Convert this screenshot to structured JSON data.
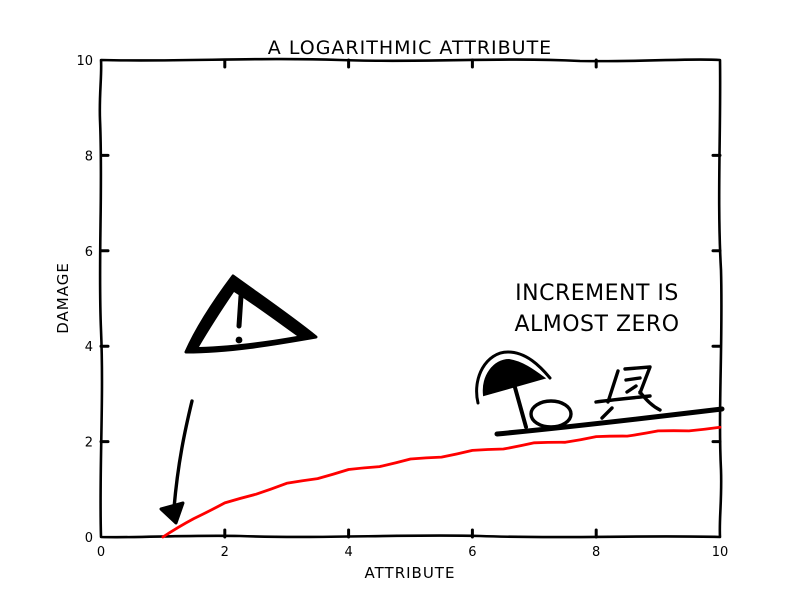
{
  "chart_data": {
    "type": "line",
    "title": "A LOGARITHMIC ATTRIBUTE",
    "xlabel": "ATTRIBUTE",
    "ylabel": "DAMAGE",
    "xlim": [
      0,
      10
    ],
    "ylim": [
      0,
      10
    ],
    "xticks": [
      "0",
      "2",
      "4",
      "6",
      "8",
      "10"
    ],
    "yticks": [
      "0",
      "2",
      "4",
      "6",
      "8",
      "10"
    ],
    "grid": false,
    "series": [
      {
        "color": "#ff0000",
        "x": [
          1.0,
          1.5,
          2.0,
          2.5,
          3.0,
          3.5,
          4.0,
          4.5,
          5.0,
          5.5,
          6.0,
          6.5,
          7.0,
          7.5,
          8.0,
          8.5,
          9.0,
          9.5,
          10.0
        ],
        "y": [
          0.0,
          0.41,
          0.69,
          0.92,
          1.1,
          1.25,
          1.39,
          1.5,
          1.61,
          1.7,
          1.79,
          1.87,
          1.95,
          2.01,
          2.08,
          2.14,
          2.2,
          2.25,
          2.3
        ]
      }
    ],
    "annotations": [
      {
        "text_lines": [
          "INCREMENT IS",
          "ALMOST ZERO"
        ]
      }
    ]
  }
}
